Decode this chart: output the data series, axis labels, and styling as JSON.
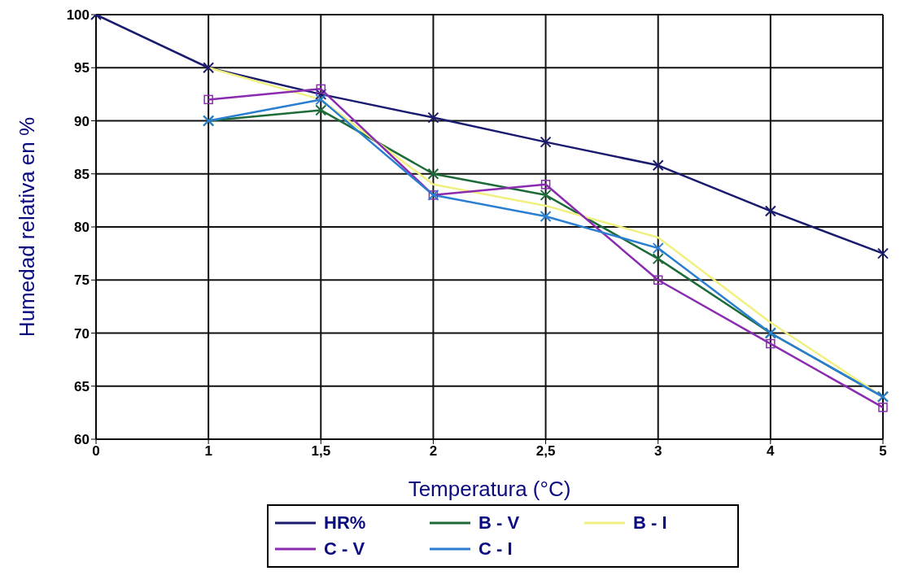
{
  "chart_data": {
    "type": "line",
    "xlabel": "Temperatura (°C)",
    "ylabel": "Humedad relativa en %",
    "categories": [
      "0",
      "1",
      "1,5",
      "2",
      "2,5",
      "3",
      "4",
      "5"
    ],
    "series": [
      {
        "name": "HR%",
        "color": "#1a1a6e",
        "marker": "cross",
        "values": [
          100,
          95,
          92.5,
          90.3,
          88,
          85.8,
          81.5,
          77.5
        ]
      },
      {
        "name": "B - V",
        "color": "#1e6b3a",
        "marker": "cross",
        "values": [
          null,
          90,
          91,
          85,
          83,
          77,
          70,
          64
        ]
      },
      {
        "name": "B - I",
        "color": "#f0f080",
        "marker": "none",
        "values": [
          null,
          95,
          92,
          84,
          82,
          79,
          71,
          64
        ]
      },
      {
        "name": "C - V",
        "color": "#8a2bb0",
        "marker": "square",
        "values": [
          null,
          92,
          93,
          83,
          84,
          75,
          69,
          63
        ]
      },
      {
        "name": "C - I",
        "color": "#2a7fd0",
        "marker": "cross",
        "values": [
          null,
          90,
          92,
          83,
          81,
          78,
          70,
          64
        ]
      }
    ],
    "ylim": [
      60,
      100
    ],
    "yticks": [
      60,
      65,
      70,
      75,
      80,
      85,
      90,
      95,
      100
    ],
    "grid": true,
    "legend": "bottom",
    "line_style": "solid"
  }
}
